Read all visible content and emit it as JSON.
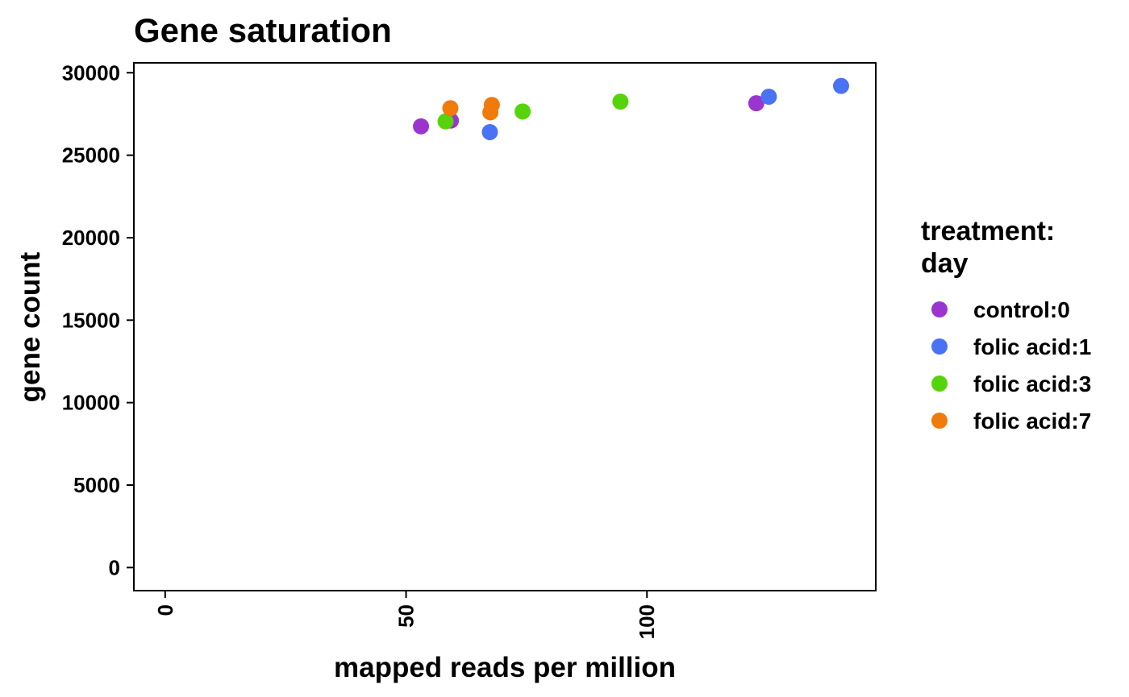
{
  "chart_data": {
    "type": "scatter",
    "title": "Gene saturation",
    "xlabel": "mapped reads per million",
    "ylabel": "gene count",
    "xlim": [
      -6.5,
      147.5
    ],
    "ylim": [
      -1400,
      30600
    ],
    "x_ticks": [
      0,
      50,
      100
    ],
    "x_tick_labels": [
      "0",
      "50",
      "100"
    ],
    "y_ticks": [
      0,
      5000,
      10000,
      15000,
      20000,
      25000,
      30000
    ],
    "y_tick_labels": [
      "0",
      "5000",
      "10000",
      "15000",
      "20000",
      "25000",
      "30000"
    ],
    "grid": false,
    "legend": {
      "title_lines": [
        "treatment:",
        "day"
      ],
      "placement": "right"
    },
    "series": [
      {
        "name": "control:0",
        "color": "#9b35cf",
        "points": [
          {
            "x": 53.1,
            "y": 26750
          },
          {
            "x": 59.3,
            "y": 27100
          },
          {
            "x": 122.7,
            "y": 28150
          }
        ]
      },
      {
        "name": "folic acid:1",
        "color": "#4a72f5",
        "points": [
          {
            "x": 67.4,
            "y": 26400
          },
          {
            "x": 125.3,
            "y": 28550
          },
          {
            "x": 140.3,
            "y": 29200
          }
        ]
      },
      {
        "name": "folic acid:3",
        "color": "#55d40c",
        "points": [
          {
            "x": 58.2,
            "y": 27050
          },
          {
            "x": 74.2,
            "y": 27650
          },
          {
            "x": 94.5,
            "y": 28250
          }
        ]
      },
      {
        "name": "folic acid:7",
        "color": "#f07a0a",
        "points": [
          {
            "x": 59.2,
            "y": 27850
          },
          {
            "x": 67.5,
            "y": 27600
          },
          {
            "x": 67.8,
            "y": 28050
          }
        ]
      }
    ]
  }
}
